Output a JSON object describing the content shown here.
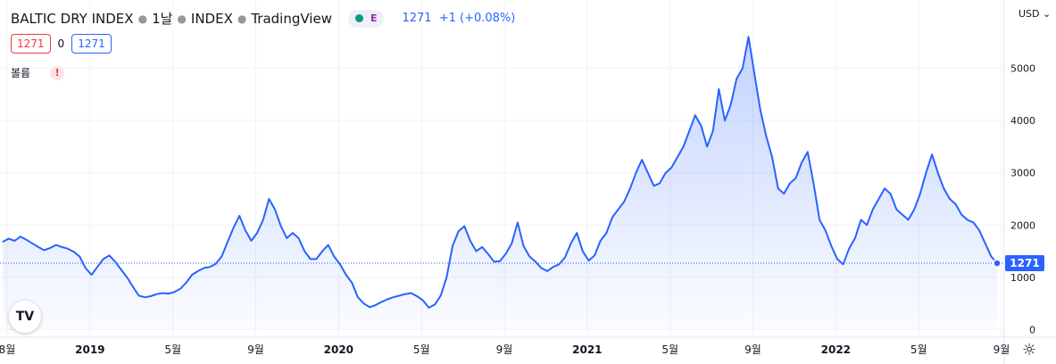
{
  "header": {
    "symbol": "BALTIC DRY INDEX",
    "interval": "1날",
    "exchange": "INDEX",
    "source": "TradingView",
    "badge": "E",
    "last_price": "1271",
    "change": "+1 (+0.08%)"
  },
  "boxes": {
    "sell": "1271",
    "spread": "0",
    "buy": "1271"
  },
  "volume_label": "볼륨",
  "warning_icon": "!",
  "currency": "USD",
  "logo_text": "TV",
  "settings_icon": "☼",
  "colors": {
    "line": "#2962ff",
    "fill": "#2962ff",
    "last_tag": "#2962ff",
    "grid": "#f0f3fa"
  },
  "chart_data": {
    "type": "area",
    "title": "BALTIC DRY INDEX",
    "xlabel": "",
    "ylabel": "",
    "ylim": [
      0,
      5700
    ],
    "y_ticks": [
      0,
      1000,
      2000,
      3000,
      4000,
      5000
    ],
    "x_tick_labels": [
      "8월",
      "2019",
      "5월",
      "9월",
      "2020",
      "5월",
      "9월",
      "2021",
      "5월",
      "9월",
      "2022",
      "5월",
      "9월"
    ],
    "last_value": 1271,
    "series": [
      {
        "values": [
          1680,
          1740,
          1700,
          1780,
          1720,
          1650,
          1580,
          1520,
          1560,
          1620,
          1580,
          1550,
          1490,
          1400,
          1180,
          1050,
          1200,
          1350,
          1420,
          1300,
          1150,
          1000,
          820,
          650,
          620,
          640,
          680,
          700,
          690,
          720,
          780,
          900,
          1050,
          1120,
          1180,
          1200,
          1260,
          1400,
          1680,
          1950,
          2180,
          1900,
          1700,
          1850,
          2100,
          2500,
          2300,
          1980,
          1750,
          1850,
          1750,
          1500,
          1350,
          1350,
          1500,
          1620,
          1400,
          1250,
          1050,
          900,
          620,
          500,
          430,
          470,
          530,
          580,
          620,
          650,
          680,
          700,
          640,
          560,
          420,
          480,
          650,
          1000,
          1600,
          1880,
          1980,
          1700,
          1500,
          1580,
          1450,
          1300,
          1310,
          1450,
          1650,
          2050,
          1600,
          1400,
          1300,
          1180,
          1120,
          1200,
          1250,
          1380,
          1650,
          1850,
          1500,
          1320,
          1420,
          1700,
          1850,
          2150,
          2300,
          2450,
          2700,
          3000,
          3250,
          3000,
          2750,
          2800,
          3000,
          3100,
          3300,
          3500,
          3800,
          4100,
          3900,
          3500,
          3800,
          4600,
          4000,
          4300,
          4800,
          5000,
          5600,
          4900,
          4200,
          3700,
          3300,
          2700,
          2600,
          2800,
          2900,
          3200,
          3400,
          2800,
          2100,
          1900,
          1600,
          1350,
          1250,
          1550,
          1750,
          2100,
          2000,
          2300,
          2500,
          2700,
          2600,
          2300,
          2200,
          2100,
          2300,
          2600,
          3000,
          3350,
          3000,
          2700,
          2500,
          2400,
          2200,
          2100,
          2050,
          1900,
          1650,
          1400,
          1271
        ]
      }
    ]
  }
}
